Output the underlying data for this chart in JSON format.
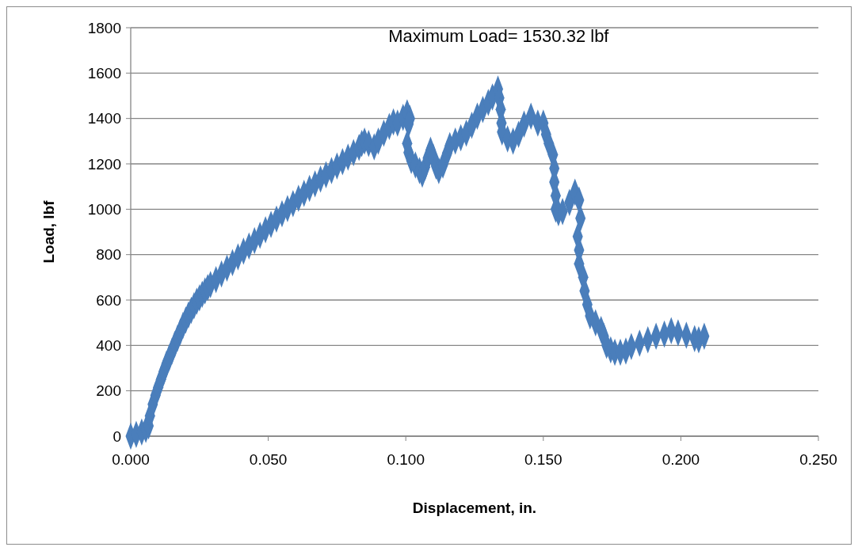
{
  "chart_data": {
    "type": "scatter",
    "xlabel": "Displacement, in.",
    "ylabel": "Load, lbf",
    "annotations": [
      "Maximum Load= 1530.32 lbf"
    ],
    "xlim": [
      0,
      0.25
    ],
    "xticks": [
      {
        "value": 0,
        "label": "0.000"
      },
      {
        "value": 0.05,
        "label": "0.050"
      },
      {
        "value": 0.1,
        "label": "0.100"
      },
      {
        "value": 0.15,
        "label": "0.150"
      },
      {
        "value": 0.2,
        "label": "0.200"
      },
      {
        "value": 0.25,
        "label": "0.250"
      }
    ],
    "ylim": [
      0,
      1800
    ],
    "yticks": [
      0,
      200,
      400,
      600,
      800,
      1000,
      1200,
      1400,
      1600,
      1800
    ],
    "grid": "y",
    "marker": "diamond",
    "series": [
      {
        "color": "#4a7ebb",
        "x": [
          0,
          0.002,
          0.004,
          0.0055,
          0.0065,
          0.007,
          0.008,
          0.009,
          0.01,
          0.011,
          0.012,
          0.013,
          0.014,
          0.015,
          0.016,
          0.017,
          0.018,
          0.019,
          0.02,
          0.021,
          0.022,
          0.023,
          0.024,
          0.025,
          0.026,
          0.027,
          0.028,
          0.029,
          0.031,
          0.033,
          0.035,
          0.037,
          0.039,
          0.041,
          0.043,
          0.045,
          0.047,
          0.049,
          0.051,
          0.053,
          0.055,
          0.057,
          0.059,
          0.061,
          0.063,
          0.065,
          0.067,
          0.069,
          0.071,
          0.073,
          0.075,
          0.077,
          0.079,
          0.081,
          0.083,
          0.084,
          0.085,
          0.0865,
          0.0885,
          0.09,
          0.092,
          0.094,
          0.0955,
          0.097,
          0.099,
          0.1005,
          0.1015,
          0.101,
          0.1005,
          0.101,
          0.102,
          0.1035,
          0.105,
          0.106,
          0.107,
          0.108,
          0.109,
          0.11,
          0.111,
          0.112,
          0.1135,
          0.115,
          0.116,
          0.118,
          0.12,
          0.122,
          0.124,
          0.126,
          0.128,
          0.13,
          0.1315,
          0.1335,
          0.134,
          0.1345,
          0.1348,
          0.135,
          0.137,
          0.139,
          0.141,
          0.143,
          0.1455,
          0.148,
          0.15,
          0.151,
          0.152,
          0.1535,
          0.154,
          0.154,
          0.1545,
          0.1545,
          0.1555,
          0.157,
          0.1595,
          0.1615,
          0.163,
          0.1635,
          0.1625,
          0.163,
          0.163,
          0.1645,
          0.165,
          0.166,
          0.167,
          0.169,
          0.171,
          0.172,
          0.173,
          0.1745,
          0.176,
          0.178,
          0.18,
          0.182,
          0.185,
          0.188,
          0.191,
          0.194,
          0.1965,
          0.199,
          0.202,
          0.205,
          0.2065,
          0.2085
        ],
        "values": [
          0,
          8,
          18,
          30,
          45,
          90,
          140,
          180,
          215,
          250,
          285,
          318,
          345,
          375,
          405,
          432,
          460,
          488,
          512,
          535,
          555,
          575,
          595,
          610,
          625,
          640,
          655,
          668,
          690,
          715,
          740,
          765,
          790,
          815,
          838,
          862,
          885,
          910,
          933,
          957,
          980,
          1003,
          1025,
          1048,
          1070,
          1092,
          1112,
          1133,
          1152,
          1170,
          1190,
          1210,
          1230,
          1250,
          1272,
          1290,
          1300,
          1290,
          1275,
          1300,
          1335,
          1365,
          1385,
          1380,
          1405,
          1425,
          1400,
          1375,
          1290,
          1250,
          1215,
          1195,
          1170,
          1155,
          1185,
          1225,
          1260,
          1230,
          1190,
          1170,
          1195,
          1245,
          1280,
          1300,
          1315,
          1335,
          1370,
          1410,
          1440,
          1470,
          1495,
          1530,
          1490,
          1440,
          1380,
          1340,
          1310,
          1300,
          1330,
          1375,
          1410,
          1380,
          1380,
          1330,
          1290,
          1240,
          1180,
          1120,
          1060,
          1000,
          985,
          990,
          1030,
          1075,
          1040,
          960,
          880,
          820,
          760,
          700,
          640,
          580,
          530,
          500,
          470,
          440,
          400,
          380,
          370,
          370,
          375,
          395,
          410,
          425,
          440,
          450,
          465,
          455,
          445,
          430,
          425,
          440
        ]
      }
    ]
  }
}
